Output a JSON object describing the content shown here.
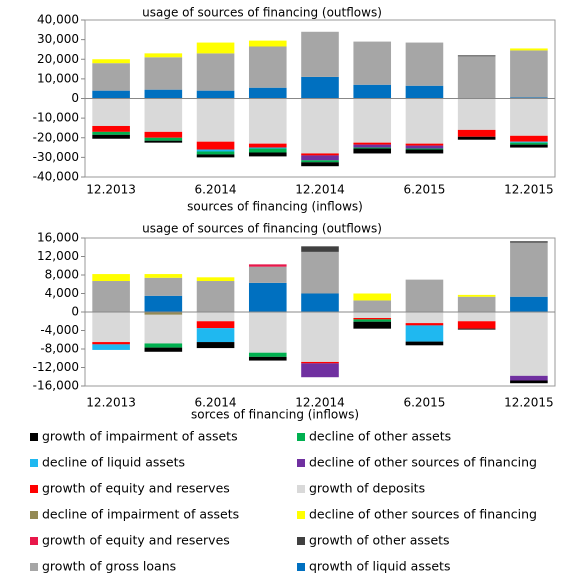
{
  "chart_data": [
    {
      "type": "bar",
      "stacked": true,
      "title": "usage of sources of financing (outflows)",
      "x_label": "sources of financing (inflows)",
      "categories": [
        "12.2013",
        null,
        "6.2014",
        null,
        "12.2014",
        null,
        "6.2015",
        null,
        "12.2015"
      ],
      "ylim": [
        -40000,
        40000
      ],
      "yticks": [
        {
          "value": -40000,
          "label": "-40,000"
        },
        {
          "value": -30000,
          "label": "-30,000"
        },
        {
          "value": -20000,
          "label": "-20,000"
        },
        {
          "value": -10000,
          "label": "-10,000"
        },
        0,
        {
          "value": 10000,
          "label": "10,000"
        },
        {
          "value": 20000,
          "label": "20,000"
        },
        {
          "value": 30000,
          "label": "30,000"
        },
        {
          "value": 40000,
          "label": "40,000"
        }
      ],
      "series": [
        {
          "name": "growth of impairment of assets",
          "color": "#000000",
          "values": [
            -2000,
            -1000,
            -1500,
            -2000,
            -2000,
            -2500,
            -2000,
            -1500,
            -1500
          ]
        },
        {
          "name": "decline of other assets",
          "color": "#00b050",
          "values": [
            -1500,
            -1500,
            -1500,
            -2000,
            -1000,
            -500,
            -500,
            0,
            -1000
          ]
        },
        {
          "name": "decline of liquid assets",
          "color": "#1fb8f0",
          "values": [
            0,
            0,
            -1000,
            -500,
            0,
            0,
            0,
            0,
            -500
          ]
        },
        {
          "name": "decline of other sources of financing",
          "color": "#7030a0",
          "values": [
            0,
            0,
            0,
            0,
            -2500,
            -1500,
            -1500,
            0,
            0
          ]
        },
        {
          "name": "growth of equity and reserves",
          "color": "#ff0000",
          "values": [
            -3000,
            -3000,
            -4000,
            -2000,
            -1000,
            -1000,
            -1000,
            -3500,
            -3000
          ]
        },
        {
          "name": "growth of deposits",
          "color": "#d9d9d9",
          "values": [
            -14000,
            -17000,
            -22000,
            -23000,
            -28000,
            -22500,
            -23000,
            -16000,
            -19000
          ]
        },
        {
          "name": "decline of impairment of assets",
          "color": "#948a54",
          "values": [
            0,
            0,
            0,
            0,
            0,
            0,
            0,
            0,
            0
          ]
        },
        {
          "name": "decline of other sources of financing",
          "color": "#ffff00",
          "values": [
            2000,
            2000,
            5500,
            3000,
            0,
            0,
            0,
            0,
            1000
          ]
        },
        {
          "name": "growth of equity and reserves",
          "color": "#e8174a",
          "values": [
            0,
            0,
            0,
            0,
            0,
            0,
            0,
            0,
            0
          ]
        },
        {
          "name": "growth of other assets",
          "color": "#404040",
          "values": [
            0,
            0,
            0,
            0,
            0,
            0,
            0,
            500,
            0
          ]
        },
        {
          "name": "growth of gross loans",
          "color": "#a6a6a6",
          "values": [
            14000,
            16500,
            19000,
            21000,
            23000,
            22000,
            22000,
            21500,
            24000
          ]
        },
        {
          "name": "qrowth of liquid assets",
          "color": "#0070c0",
          "values": [
            4000,
            4500,
            4000,
            5500,
            11000,
            7000,
            6500,
            0,
            500
          ]
        }
      ]
    },
    {
      "type": "bar",
      "stacked": true,
      "title": "usage of sources of financing (outflows)",
      "x_label": "sorces of financing (inflows)",
      "categories": [
        "12.2013",
        null,
        "6.2014",
        null,
        "12.2014",
        null,
        "6.2015",
        null,
        "12.2015"
      ],
      "ylim": [
        -16000,
        16000
      ],
      "yticks": [
        {
          "value": -16000,
          "label": "-16,000"
        },
        {
          "value": -12000,
          "label": "-12,000"
        },
        {
          "value": -8000,
          "label": "-8,000"
        },
        {
          "value": -4000,
          "label": "-4,000"
        },
        0,
        {
          "value": 4000,
          "label": "4,000"
        },
        {
          "value": 8000,
          "label": "8,000"
        },
        {
          "value": 12000,
          "label": "12,000"
        },
        {
          "value": 16000,
          "label": "16,000"
        }
      ],
      "series": [
        {
          "values": [
            0,
            -900,
            -1300,
            -800,
            0,
            -1500,
            -800,
            -200,
            -600
          ]
        },
        {
          "values": [
            0,
            -900,
            0,
            -900,
            0,
            -500,
            0,
            0,
            0
          ]
        },
        {
          "values": [
            -1200,
            0,
            -3000,
            0,
            0,
            0,
            -3500,
            0,
            0
          ]
        },
        {
          "values": [
            0,
            0,
            0,
            0,
            -3000,
            0,
            0,
            0,
            -1000
          ]
        },
        {
          "values": [
            -500,
            0,
            -1500,
            0,
            -300,
            -300,
            -500,
            -1600,
            0
          ]
        },
        {
          "values": [
            -6500,
            -6200,
            -2000,
            -8800,
            -10800,
            -1300,
            -2400,
            -2000,
            -13800
          ]
        },
        {
          "values": [
            0,
            -600,
            0,
            0,
            0,
            0,
            0,
            0,
            0
          ]
        },
        {
          "values": [
            1500,
            800,
            800,
            0,
            0,
            1500,
            0,
            400,
            0
          ]
        },
        {
          "values": [
            0,
            0,
            0,
            500,
            0,
            0,
            0,
            0,
            0
          ]
        },
        {
          "values": [
            0,
            0,
            0,
            0,
            1200,
            0,
            0,
            0,
            300
          ]
        },
        {
          "values": [
            6700,
            3900,
            6700,
            3500,
            9000,
            2500,
            7000,
            3300,
            11700
          ]
        },
        {
          "values": [
            0,
            3500,
            0,
            6300,
            4000,
            0,
            0,
            0,
            3300
          ]
        }
      ]
    }
  ]
}
